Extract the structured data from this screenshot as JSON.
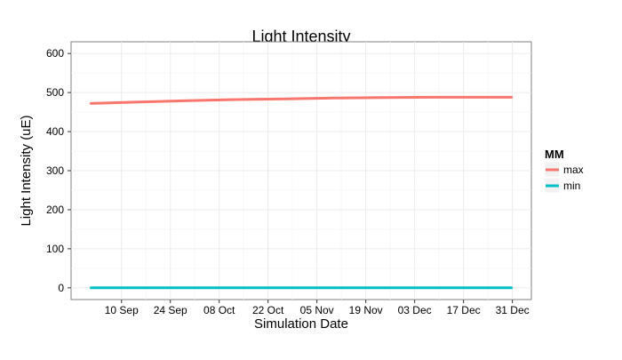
{
  "chart_data": {
    "type": "line",
    "title": "Light Intensity",
    "xlabel": "Simulation Date",
    "ylabel": "Light Intensity (uE)",
    "x_tick_labels": [
      "10 Sep",
      "24 Sep",
      "08 Oct",
      "22 Oct",
      "05 Nov",
      "19 Nov",
      "03 Dec",
      "17 Dec",
      "31 Dec"
    ],
    "y_ticks": [
      0,
      100,
      200,
      300,
      400,
      500,
      600
    ],
    "ylim": [
      -30,
      630
    ],
    "legend": {
      "title": "MM",
      "position": "right"
    },
    "x": [
      "01 Sep",
      "15 Sep",
      "29 Sep",
      "13 Oct",
      "27 Oct",
      "10 Nov",
      "24 Nov",
      "08 Dec",
      "22 Dec",
      "31 Dec"
    ],
    "series": [
      {
        "name": "max",
        "color": "#F8766D",
        "values": [
          472,
          476,
          479,
          482,
          484,
          486,
          487,
          488,
          488,
          488
        ]
      },
      {
        "name": "min",
        "color": "#00BFC4",
        "values": [
          0,
          0,
          0,
          0,
          0,
          0,
          0,
          0,
          0,
          0
        ]
      }
    ],
    "grid": true
  }
}
